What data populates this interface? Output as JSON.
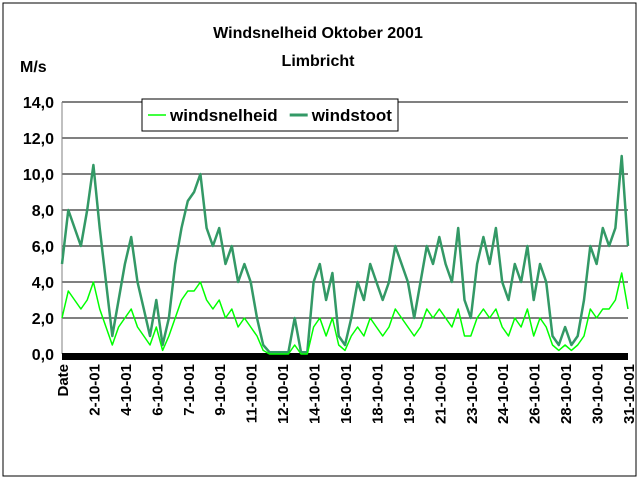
{
  "chart_data": {
    "type": "line",
    "title": "Windsnelheid Oktober 2001",
    "subtitle": "Limbricht",
    "y_label": "M/s",
    "categories": [
      "Date",
      null,
      null,
      null,
      null,
      "2-10-01",
      null,
      null,
      null,
      null,
      "4-10-01",
      null,
      null,
      null,
      null,
      "6-10-01",
      null,
      null,
      null,
      null,
      "7-10-01",
      null,
      null,
      null,
      null,
      "9-10-01",
      null,
      null,
      null,
      null,
      "11-10-01",
      null,
      null,
      null,
      null,
      "12-10-01",
      null,
      null,
      null,
      null,
      "14-10-01",
      null,
      null,
      null,
      null,
      "16-10-01",
      null,
      null,
      null,
      null,
      "18-10-01",
      null,
      null,
      null,
      null,
      "19-10-01",
      null,
      null,
      null,
      null,
      "21-10-01",
      null,
      null,
      null,
      null,
      "23-10-01",
      null,
      null,
      null,
      null,
      "24-10-01",
      null,
      null,
      null,
      null,
      "26-10-01",
      null,
      null,
      null,
      null,
      "28-10-01",
      null,
      null,
      null,
      null,
      "30-10-01",
      null,
      null,
      null,
      null,
      "31-10-01"
    ],
    "series": [
      {
        "name": "windsnelheid",
        "color": "#00ff00",
        "values": [
          2,
          3.5,
          3,
          2.5,
          3,
          4,
          2.5,
          1.5,
          0.5,
          1.5,
          2,
          2.5,
          1.5,
          1,
          0.5,
          1.5,
          0.2,
          1,
          2,
          3,
          3.5,
          3.5,
          4,
          3,
          2.5,
          3,
          2,
          2.5,
          1.5,
          2,
          1.5,
          1,
          0.2,
          0,
          0,
          0,
          0,
          0.5,
          0,
          0,
          1.5,
          2,
          1,
          2,
          0.5,
          0.2,
          1,
          1.5,
          1,
          2,
          1.5,
          1,
          1.5,
          2.5,
          2,
          1.5,
          1,
          1.5,
          2.5,
          2,
          2.5,
          2,
          1.5,
          2.5,
          1,
          1,
          2,
          2.5,
          2,
          2.5,
          1.5,
          1,
          2,
          1.5,
          2.5,
          1,
          2,
          1.5,
          0.5,
          0.2,
          0.5,
          0.2,
          0.5,
          1,
          2.5,
          2,
          2.5,
          2.5,
          3,
          4.5,
          2.5
        ]
      },
      {
        "name": "windstoot",
        "color": "#339966",
        "values": [
          5,
          8,
          7,
          6,
          8,
          10.5,
          7,
          4,
          1,
          3,
          5,
          6.5,
          4,
          2.5,
          1,
          3,
          0.5,
          2,
          5,
          7,
          8.5,
          9,
          10,
          7,
          6,
          7,
          5,
          6,
          4,
          5,
          4,
          2,
          0.5,
          0.1,
          0.1,
          0.1,
          0.1,
          2,
          0.1,
          0.1,
          4,
          5,
          3,
          4.5,
          1,
          0.5,
          2,
          4,
          3,
          5,
          4,
          3,
          4,
          6,
          5,
          4,
          2,
          4,
          6,
          5,
          6.5,
          5,
          4,
          7,
          3,
          2,
          5,
          6.5,
          5,
          7,
          4,
          3,
          5,
          4,
          6,
          3,
          5,
          4,
          1,
          0.5,
          1.5,
          0.5,
          1,
          3,
          6,
          5,
          7,
          6,
          7,
          11,
          6
        ]
      }
    ],
    "ylim": [
      0,
      14
    ],
    "yticks": [
      {
        "value": 0,
        "label": "0,0"
      },
      {
        "value": 2,
        "label": "2,0"
      },
      {
        "value": 4,
        "label": "4,0"
      },
      {
        "value": 6,
        "label": "6,0"
      },
      {
        "value": 8,
        "label": "8,0"
      },
      {
        "value": 10,
        "label": "10,0"
      },
      {
        "value": 12,
        "label": "12,0"
      },
      {
        "value": 14,
        "label": "14,0"
      }
    ],
    "grid": true,
    "legend": "top-left"
  }
}
